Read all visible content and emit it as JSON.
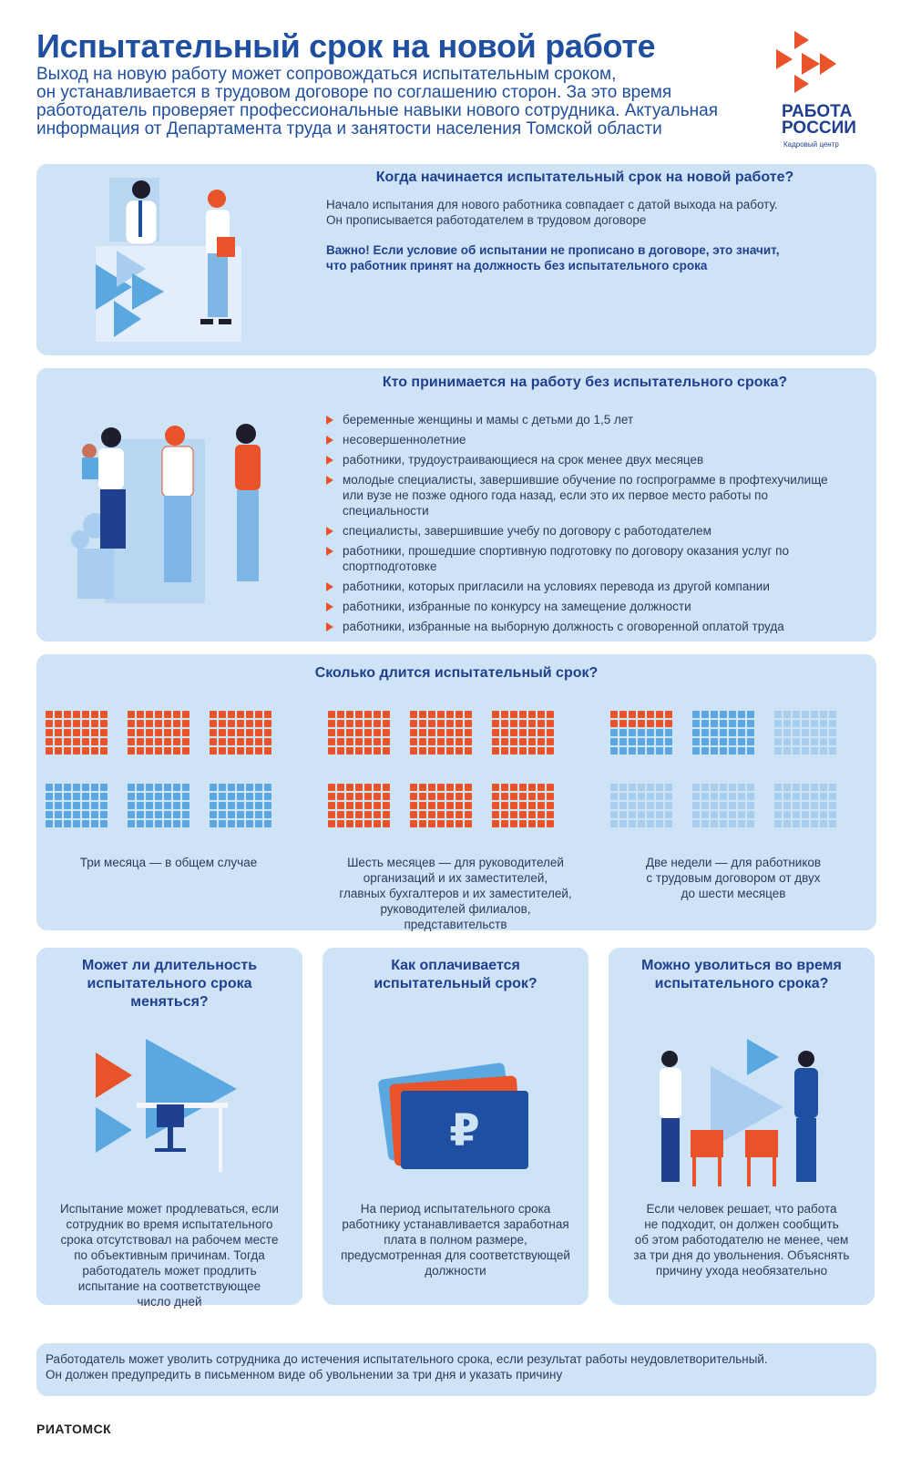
{
  "header": {
    "title": "Испытательный срок на новой работе",
    "subtitle_lines": [
      "Выход на новую работу может сопровождаться испытательным сроком,",
      "он устанавливается в трудовом договоре по соглашению сторон. За это время",
      "работодатель проверяет профессиональные навыки нового сотрудника. Актуальная",
      "информация от Департамента труда и занятости населения Томской области"
    ]
  },
  "logo": {
    "line1": "РАБОТА",
    "line2": "РОССИИ",
    "sub": "Кадровый центр"
  },
  "colors": {
    "accent": "#e8532a",
    "brand": "#1f4fa0",
    "card": "#cfe3f6",
    "blue_square": "#5ba8e0"
  },
  "section1": {
    "heading": "Когда начинается испытательный срок на новой работе?",
    "text_lines": [
      "Начало испытания для нового работника совпадает с датой выхода на работу.",
      "Он прописывается работодателем в трудовом договоре"
    ],
    "important_lines": [
      "Важно! Если условие об испытании не прописано в договоре, это значит,",
      "что работник принят на должность без испытательного срока"
    ]
  },
  "section2": {
    "heading": "Кто принимается на работу без испытательного срока?",
    "items": [
      "беременные женщины и мамы с детьми до 1,5 лет",
      "несовершеннолетние",
      "работники, трудоустраивающиеся на срок менее двух месяцев",
      "молодые специалисты, завершившие обучение по госпрограмме в профтехучилище или вузе не позже одного года назад, если это их первое место работы по специальности",
      "специалисты, завершившие учебу по договору с работодателем",
      "работники, прошедшие спортивную подготовку по договору оказания услуг по спортподготовке",
      "работники, которых пригласили на условиях перевода из другой компании",
      "работники, избранные по конкурсу на замещение должности",
      "работники, избранные на выборную должность с оговоренной оплатой труда"
    ]
  },
  "section3": {
    "heading": "Сколько длится испытательный срок?",
    "groups": [
      {
        "text_lines": [
          "Три месяца — в общем случае"
        ],
        "filled_months": 3
      },
      {
        "text_lines": [
          "Шесть месяцев — для руководителей",
          "организаций и их заместителей,",
          "главных бухгалтеров и их заместителей,",
          "руководителей филиалов,",
          "представительств"
        ],
        "filled_months": 6
      },
      {
        "text_lines": [
          "Две недели — для работников",
          "с трудовым договором от двух",
          "до шести месяцев"
        ],
        "filled_days": 14
      }
    ]
  },
  "card_a": {
    "heading_lines": [
      "Может ли длительность",
      "испытательного срока",
      "меняться?"
    ],
    "text_lines": [
      "Испытание может продлеваться, если",
      "сотрудник во время испытательного",
      "срока отсутствовал на рабочем месте",
      "по объективным причинам. Тогда",
      "работодатель может продлить",
      "испытание на соответствующее",
      "число дней"
    ]
  },
  "card_b": {
    "heading_lines": [
      "Как оплачивается",
      "испытательный срок?"
    ],
    "text_lines": [
      "На период испытательного срока",
      "работнику устанавливается заработная",
      "плата в полном размере,",
      "предусмотренная для соответствующей",
      "должности"
    ],
    "currency_symbol": "₽"
  },
  "card_c": {
    "heading_lines": [
      "Можно уволиться во время",
      "испытательного срока?"
    ],
    "text_lines": [
      "Если человек решает, что работа",
      "не подходит, он должен сообщить",
      "об этом работодателю не менее, чем",
      "за три дня до увольнения. Объяснять",
      "причину ухода необязательно"
    ]
  },
  "footer": {
    "text_lines": [
      "Работодатель может уволить сотрудника до истечения испытательного срока, если результат работы неудовлетворительный.",
      "Он должен предупредить в письменном виде об увольнении за три дня и указать причину"
    ],
    "source": "РИАТОМСК"
  }
}
